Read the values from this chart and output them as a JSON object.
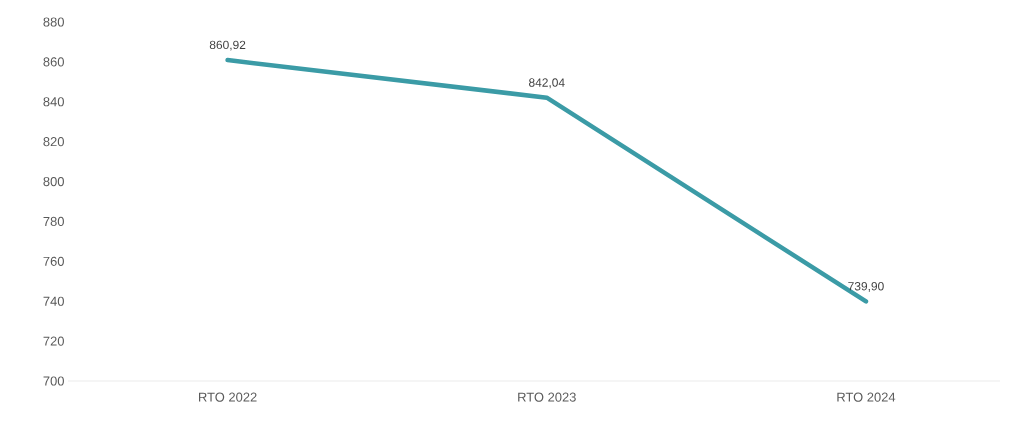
{
  "chart_data": {
    "type": "line",
    "categories": [
      "RTO 2022",
      "RTO 2023",
      "RTO 2024"
    ],
    "series": [
      {
        "color": "#3b9ba6",
        "values": [
          860.92,
          842.04,
          739.9
        ],
        "value_labels": [
          "860,92",
          "842,04",
          "739,90"
        ]
      }
    ],
    "ylim": [
      700,
      880
    ],
    "yticks": [
      700,
      720,
      740,
      760,
      780,
      800,
      820,
      840,
      860,
      880
    ],
    "grid": false,
    "marker": "none",
    "line_style": "solid"
  }
}
